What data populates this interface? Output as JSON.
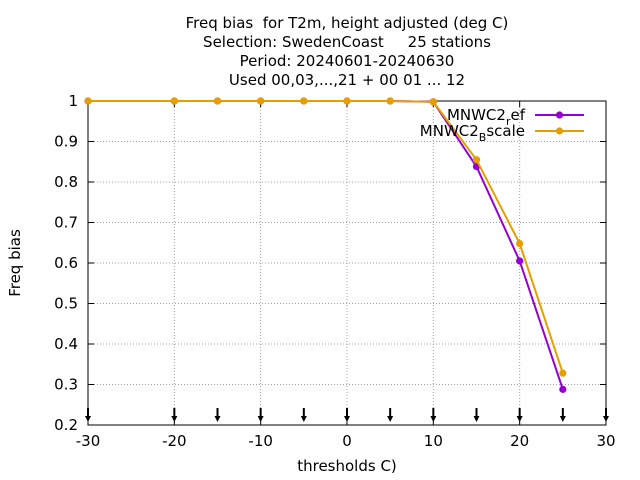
{
  "chart_data": {
    "type": "line",
    "title_lines": [
      "Freq bias  for T2m, height adjusted (deg C)",
      "Selection: SwedenCoast     25 stations",
      "Period: 20240601-20240630",
      "Used 00,03,...,21 + 00 01 ... 12"
    ],
    "xlabel": "thresholds C)",
    "ylabel": "Freq bias",
    "xlim": [
      -30,
      30
    ],
    "ylim": [
      0.2,
      1
    ],
    "xticks": [
      -30,
      -20,
      -10,
      0,
      10,
      20,
      30
    ],
    "yticks": [
      0.2,
      0.3,
      0.4,
      0.5,
      0.6,
      0.7,
      0.8,
      0.9,
      1
    ],
    "grid": true,
    "legend_position": "top-right",
    "count_markers_x": [
      -30,
      -20,
      -15,
      -10,
      -5,
      0,
      5,
      10,
      15,
      20,
      25,
      30
    ],
    "series": [
      {
        "name": "MNWC2_ref",
        "legend_main": "MNWC2",
        "legend_sub": "r",
        "legend_tail": "ef",
        "color": "#9400d3",
        "x": [
          -30,
          -20,
          -15,
          -10,
          -5,
          0,
          5,
          10,
          15,
          20,
          25
        ],
        "y": [
          1.0,
          1.0,
          1.0,
          1.0,
          1.0,
          1.0,
          1.0,
          0.998,
          0.838,
          0.605,
          0.288
        ]
      },
      {
        "name": "MNWC2_Bscale",
        "legend_main": "MNWC2",
        "legend_sub": "B",
        "legend_tail": "scale",
        "color": "#e69f00",
        "x": [
          -30,
          -20,
          -15,
          -10,
          -5,
          0,
          5,
          10,
          15,
          20,
          25
        ],
        "y": [
          1.0,
          1.0,
          1.0,
          1.0,
          1.0,
          1.0,
          1.0,
          0.998,
          0.855,
          0.648,
          0.328
        ]
      }
    ]
  }
}
